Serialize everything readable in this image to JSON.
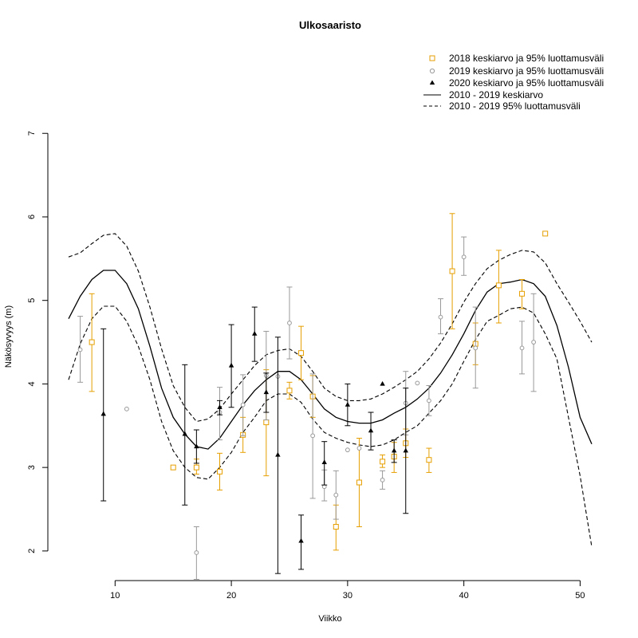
{
  "chart_data": {
    "type": "scatter",
    "title": "Ulkosaaristo",
    "xlabel": "Viikko",
    "ylabel": "Näkösyvyys (m)",
    "xlim": [
      6,
      51
    ],
    "ylim": [
      1.55,
      7.05
    ],
    "xticks": [
      "10",
      "20",
      "30",
      "40",
      "50"
    ],
    "yticks": [
      "2",
      "3",
      "4",
      "5",
      "6",
      "7"
    ],
    "legend_position": "top-right",
    "legend": {
      "s2018": "2018 keskiarvo ja 95% luottamusväli",
      "s2019": "2019 keskiarvo ja 95% luottamusväli",
      "s2020": "2020 keskiarvo ja 95% luottamusväli",
      "mean": "2010 - 2019 keskiarvo",
      "ci": "2010 - 2019 95% luottamusväli"
    },
    "colors": {
      "s2018": "#E69F00",
      "s2019": "#999999",
      "s2020": "#000000",
      "reference": "#000000"
    },
    "series": [
      {
        "key": "s2018",
        "marker": "square-open",
        "points": [
          {
            "x": 8,
            "y": 4.5,
            "lo": 3.91,
            "hi": 5.08
          },
          {
            "x": 15,
            "y": 3.0
          },
          {
            "x": 17,
            "y": 3.0,
            "lo": 2.92,
            "hi": 3.1
          },
          {
            "x": 19,
            "y": 2.95,
            "lo": 2.73,
            "hi": 3.17
          },
          {
            "x": 21,
            "y": 3.39,
            "lo": 3.18,
            "hi": 3.6
          },
          {
            "x": 23,
            "y": 3.54,
            "lo": 2.9,
            "hi": 4.17
          },
          {
            "x": 25,
            "y": 3.92,
            "lo": 3.82,
            "hi": 4.02
          },
          {
            "x": 26,
            "y": 4.37,
            "lo": 4.05,
            "hi": 4.69
          },
          {
            "x": 27,
            "y": 3.85,
            "lo": 3.6,
            "hi": 4.1
          },
          {
            "x": 29,
            "y": 2.29,
            "lo": 2.01,
            "hi": 2.55
          },
          {
            "x": 31,
            "y": 2.82,
            "lo": 2.29,
            "hi": 3.35
          },
          {
            "x": 33,
            "y": 3.07,
            "lo": 3.0,
            "hi": 3.15
          },
          {
            "x": 34,
            "y": 3.13,
            "lo": 2.94,
            "hi": 3.3
          },
          {
            "x": 35,
            "y": 3.29,
            "lo": 3.12,
            "hi": 3.46
          },
          {
            "x": 37,
            "y": 3.09,
            "lo": 2.94,
            "hi": 3.23
          },
          {
            "x": 39,
            "y": 5.35,
            "lo": 4.66,
            "hi": 6.04
          },
          {
            "x": 41,
            "y": 4.48,
            "lo": 4.23,
            "hi": 4.73
          },
          {
            "x": 43,
            "y": 5.18,
            "lo": 4.73,
            "hi": 5.6
          },
          {
            "x": 45,
            "y": 5.08,
            "lo": 4.9,
            "hi": 5.25
          },
          {
            "x": 47,
            "y": 5.8
          }
        ]
      },
      {
        "key": "s2019",
        "marker": "circle-open",
        "points": [
          {
            "x": 7,
            "y": 4.41,
            "lo": 4.02,
            "hi": 4.81
          },
          {
            "x": 11,
            "y": 3.7
          },
          {
            "x": 17,
            "y": 1.98,
            "lo": 1.66,
            "hi": 2.29
          },
          {
            "x": 19,
            "y": 3.66,
            "lo": 3.33,
            "hi": 3.96
          },
          {
            "x": 21,
            "y": 3.75,
            "lo": 3.38,
            "hi": 4.11
          },
          {
            "x": 23,
            "y": 4.1,
            "lo": 3.57,
            "hi": 4.63
          },
          {
            "x": 24,
            "y": 4.09
          },
          {
            "x": 25,
            "y": 4.73,
            "lo": 4.3,
            "hi": 5.16
          },
          {
            "x": 27,
            "y": 3.38,
            "lo": 2.63,
            "hi": 4.12
          },
          {
            "x": 28,
            "y": 2.77,
            "lo": 2.6,
            "hi": 2.97
          },
          {
            "x": 29,
            "y": 2.67,
            "lo": 2.38,
            "hi": 2.96
          },
          {
            "x": 30,
            "y": 3.21
          },
          {
            "x": 31,
            "y": 3.23
          },
          {
            "x": 33,
            "y": 2.85,
            "lo": 2.74,
            "hi": 2.96
          },
          {
            "x": 35,
            "y": 3.77,
            "lo": 3.39,
            "hi": 4.15
          },
          {
            "x": 36,
            "y": 4.01
          },
          {
            "x": 37,
            "y": 3.8,
            "lo": 3.62,
            "hi": 3.98
          },
          {
            "x": 38,
            "y": 4.8,
            "lo": 4.6,
            "hi": 5.02
          },
          {
            "x": 40,
            "y": 5.52,
            "lo": 5.3,
            "hi": 5.76
          },
          {
            "x": 41,
            "y": 4.43,
            "lo": 3.95,
            "hi": 4.92
          },
          {
            "x": 45,
            "y": 4.43,
            "lo": 4.12,
            "hi": 4.75
          },
          {
            "x": 46,
            "y": 4.5,
            "lo": 3.91,
            "hi": 5.08
          }
        ]
      },
      {
        "key": "s2020",
        "marker": "triangle-filled",
        "points": [
          {
            "x": 9,
            "y": 3.64,
            "lo": 2.6,
            "hi": 4.66
          },
          {
            "x": 16,
            "y": 3.4,
            "lo": 2.55,
            "hi": 4.23
          },
          {
            "x": 17,
            "y": 3.25,
            "lo": 3.05,
            "hi": 3.45
          },
          {
            "x": 19,
            "y": 3.72,
            "lo": 3.63,
            "hi": 3.8
          },
          {
            "x": 20,
            "y": 4.22,
            "lo": 3.72,
            "hi": 4.71
          },
          {
            "x": 22,
            "y": 4.6,
            "lo": 4.27,
            "hi": 4.92
          },
          {
            "x": 23,
            "y": 3.9,
            "lo": 3.66,
            "hi": 4.13
          },
          {
            "x": 24,
            "y": 3.15,
            "lo": 1.73,
            "hi": 4.56
          },
          {
            "x": 26,
            "y": 2.12,
            "lo": 1.78,
            "hi": 2.43
          },
          {
            "x": 28,
            "y": 3.06,
            "lo": 2.79,
            "hi": 3.31
          },
          {
            "x": 30,
            "y": 3.75,
            "lo": 3.5,
            "hi": 4.0
          },
          {
            "x": 32,
            "y": 3.44,
            "lo": 3.21,
            "hi": 3.66
          },
          {
            "x": 33,
            "y": 4.0
          },
          {
            "x": 34,
            "y": 3.2,
            "lo": 3.06,
            "hi": 3.33
          },
          {
            "x": 35,
            "y": 3.2,
            "lo": 2.45,
            "hi": 3.95
          }
        ]
      }
    ],
    "reference": {
      "x": [
        6,
        7,
        8,
        9,
        10,
        11,
        12,
        13,
        14,
        15,
        16,
        17,
        18,
        19,
        20,
        21,
        22,
        23,
        24,
        25,
        26,
        27,
        28,
        29,
        30,
        31,
        32,
        33,
        34,
        35,
        36,
        37,
        38,
        39,
        40,
        41,
        42,
        43,
        44,
        45,
        46,
        47,
        48,
        49,
        50,
        51
      ],
      "mean": [
        4.78,
        5.05,
        5.25,
        5.36,
        5.36,
        5.2,
        4.9,
        4.45,
        3.95,
        3.6,
        3.4,
        3.25,
        3.22,
        3.35,
        3.55,
        3.75,
        3.92,
        4.05,
        4.15,
        4.15,
        4.05,
        3.88,
        3.7,
        3.6,
        3.55,
        3.53,
        3.53,
        3.57,
        3.65,
        3.72,
        3.82,
        3.95,
        4.13,
        4.35,
        4.6,
        4.88,
        5.1,
        5.2,
        5.22,
        5.25,
        5.2,
        5.05,
        4.7,
        4.2,
        3.6,
        3.28
      ],
      "upper": [
        5.52,
        5.57,
        5.68,
        5.78,
        5.8,
        5.65,
        5.35,
        4.92,
        4.42,
        3.98,
        3.72,
        3.55,
        3.58,
        3.7,
        3.88,
        4.05,
        4.22,
        4.35,
        4.4,
        4.42,
        4.33,
        4.15,
        3.95,
        3.85,
        3.8,
        3.8,
        3.82,
        3.88,
        3.96,
        4.05,
        4.15,
        4.3,
        4.49,
        4.72,
        4.98,
        5.2,
        5.38,
        5.48,
        5.55,
        5.6,
        5.58,
        5.45,
        5.2,
        4.98,
        4.75,
        4.5
      ],
      "lower": [
        4.05,
        4.48,
        4.78,
        4.93,
        4.93,
        4.75,
        4.45,
        4.05,
        3.55,
        3.2,
        3.0,
        2.88,
        2.86,
        3.0,
        3.18,
        3.42,
        3.6,
        3.8,
        3.88,
        3.88,
        3.78,
        3.58,
        3.42,
        3.35,
        3.3,
        3.27,
        3.25,
        3.27,
        3.33,
        3.42,
        3.5,
        3.65,
        3.8,
        4.0,
        4.27,
        4.53,
        4.75,
        4.82,
        4.9,
        4.92,
        4.85,
        4.6,
        4.3,
        3.6,
        2.9,
        2.05
      ]
    }
  }
}
